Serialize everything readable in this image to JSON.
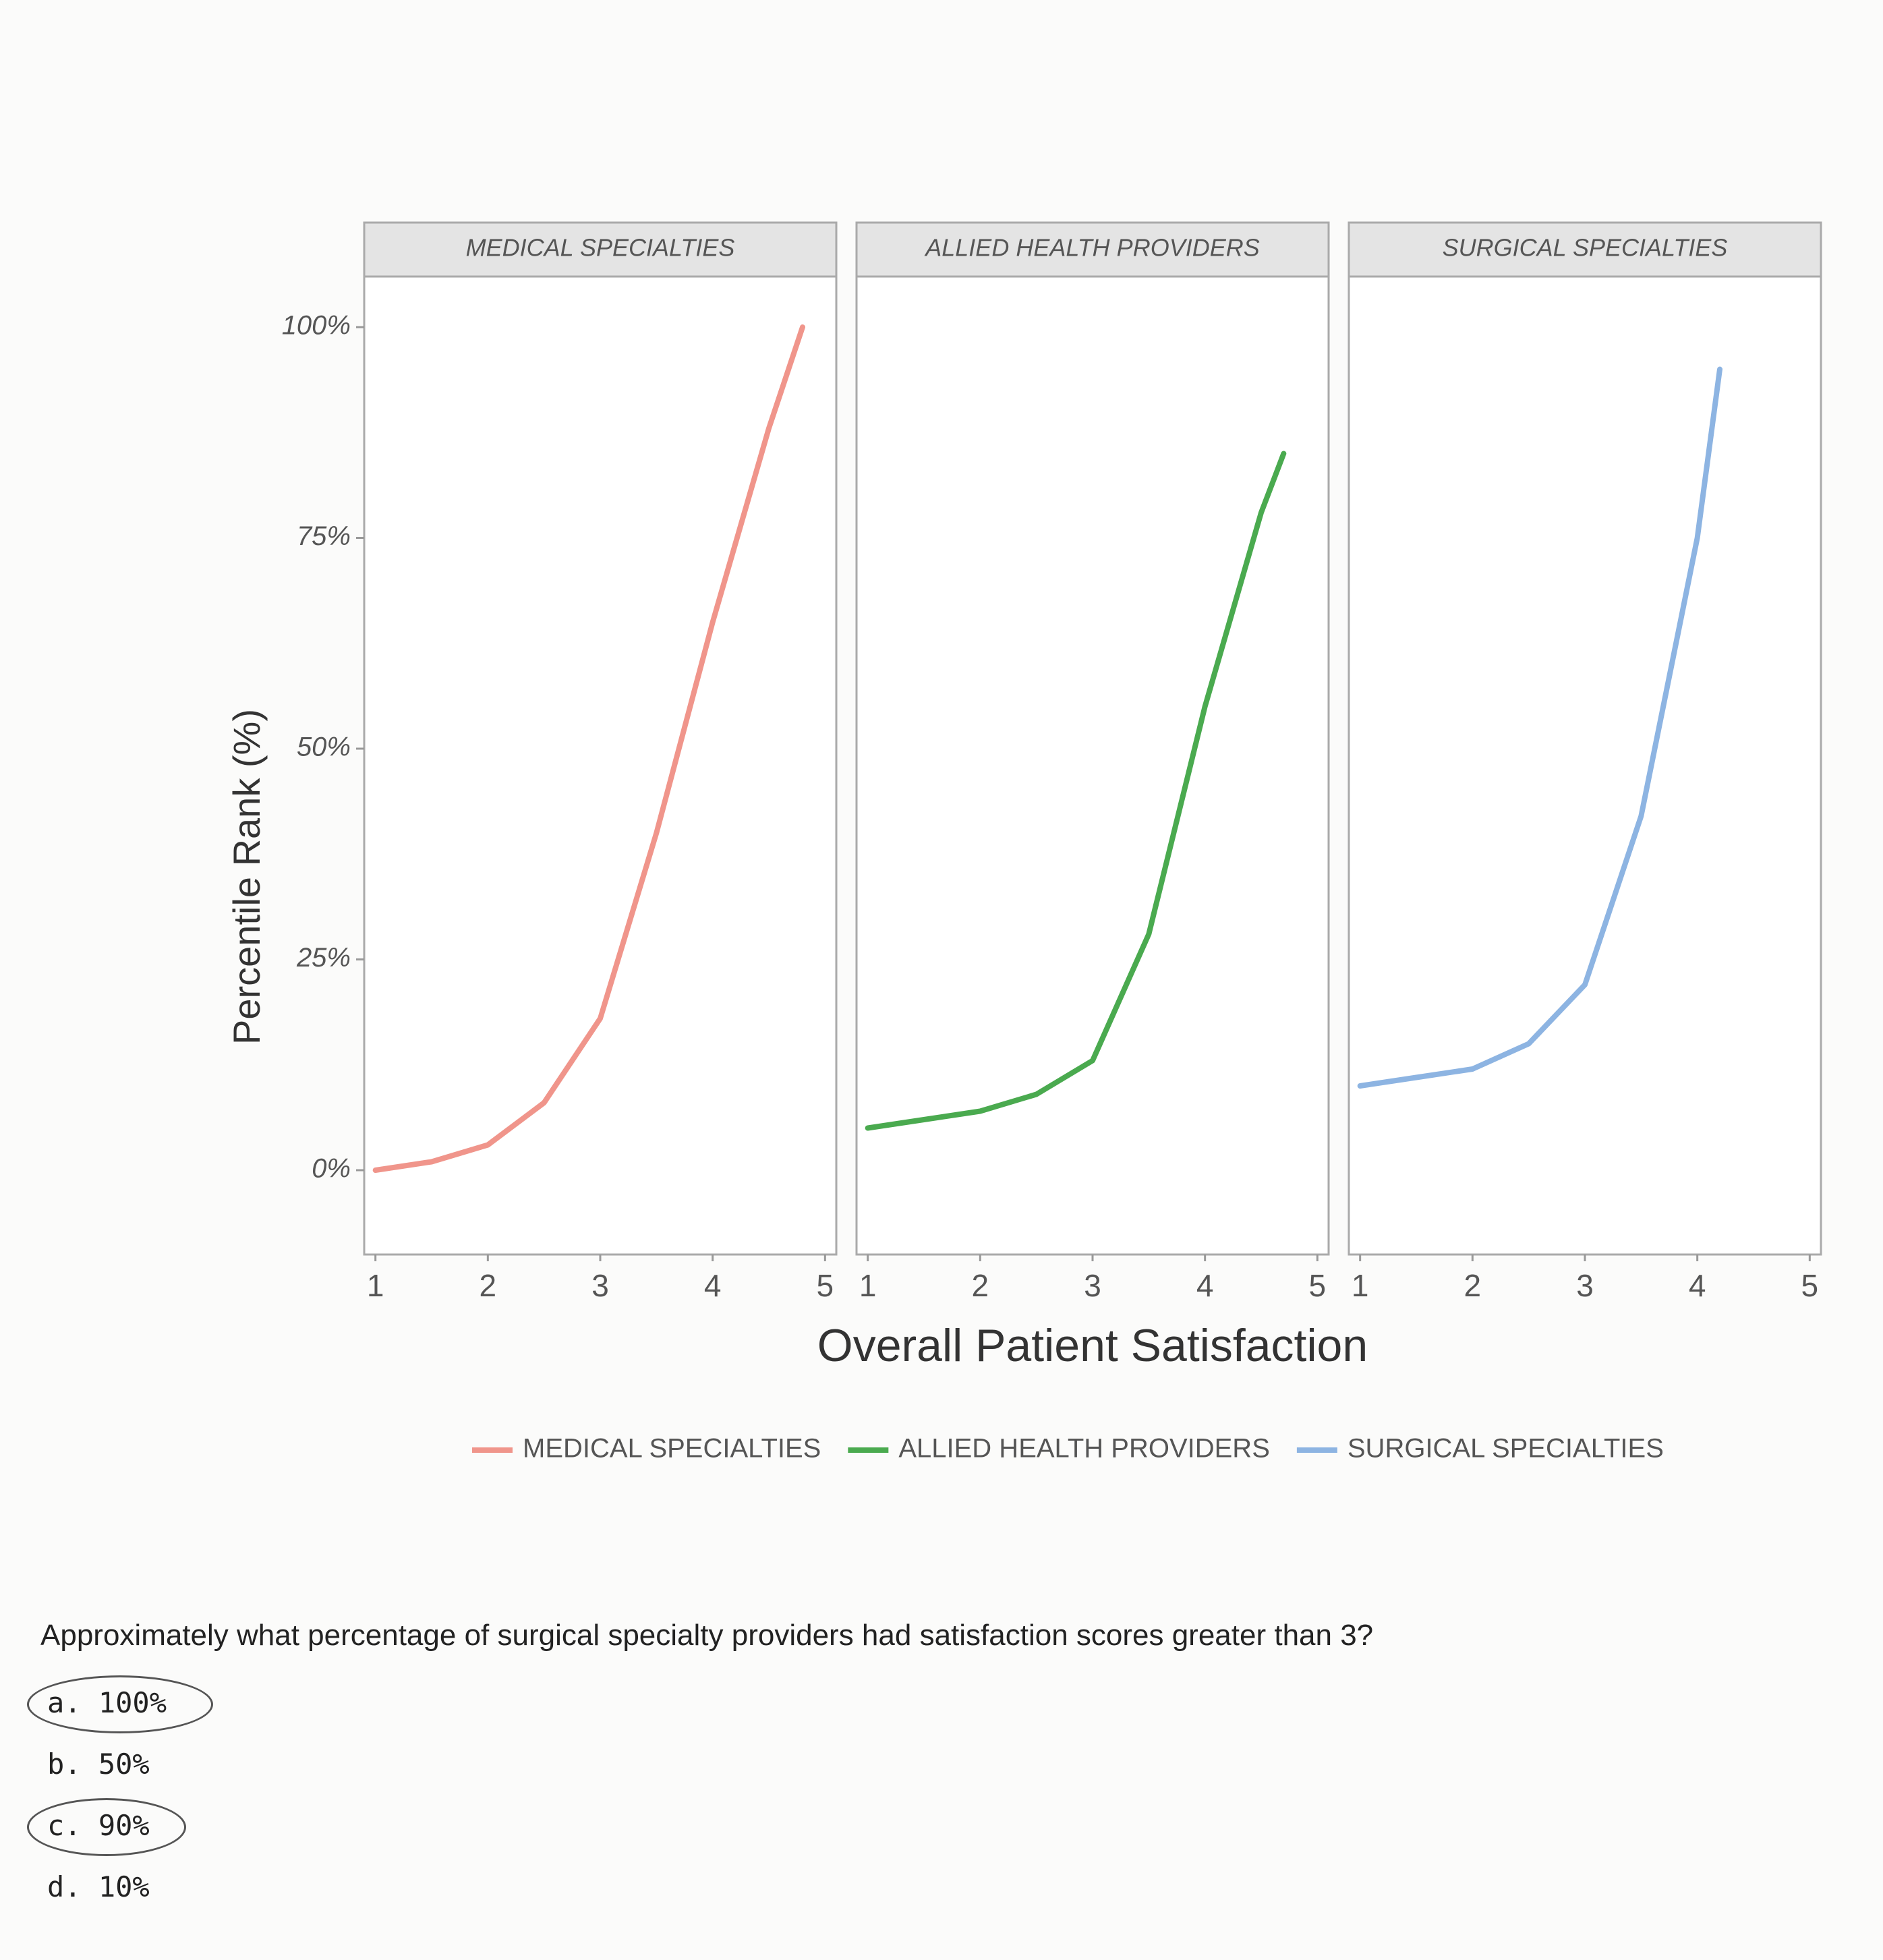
{
  "figure": {
    "y_label": "Percentile Rank (%)",
    "x_label": "Overall Patient Satisfaction"
  },
  "chart_data": [
    {
      "type": "line",
      "title": "MEDICAL SPECIALTIES",
      "x": [
        1,
        1.5,
        2,
        2.5,
        3,
        3.5,
        4,
        4.5,
        4.8
      ],
      "series": [
        {
          "name": "MEDICAL SPECIALTIES",
          "color": "#f0958b",
          "values": [
            0,
            1,
            3,
            8,
            18,
            40,
            65,
            88,
            100
          ]
        }
      ],
      "xlim": [
        0.9,
        5.1
      ],
      "xticks": [
        1,
        2,
        3,
        4,
        5
      ],
      "ylim": [
        -10,
        106
      ],
      "yticks": [
        {
          "value": 0,
          "label": "0%"
        },
        {
          "value": 25,
          "label": "25%"
        },
        {
          "value": 50,
          "label": "50%"
        },
        {
          "value": 75,
          "label": "75%"
        },
        {
          "value": 100,
          "label": "100%"
        }
      ]
    },
    {
      "type": "line",
      "title": "ALLIED HEALTH PROVIDERS",
      "x": [
        1,
        1.5,
        2,
        2.5,
        3,
        3.5,
        4,
        4.5,
        4.7
      ],
      "series": [
        {
          "name": "ALLIED HEALTH PROVIDERS",
          "color": "#4aaa4f",
          "values": [
            5,
            6,
            7,
            9,
            13,
            28,
            55,
            78,
            85
          ]
        }
      ],
      "xlim": [
        0.9,
        5.1
      ],
      "xticks": [
        1,
        2,
        3,
        4,
        5
      ],
      "ylim": [
        -10,
        106
      ]
    },
    {
      "type": "line",
      "title": "SURGICAL SPECIALTIES",
      "x": [
        1,
        1.5,
        2,
        2.5,
        3,
        3.5,
        4,
        4.2
      ],
      "series": [
        {
          "name": "SURGICAL SPECIALTIES",
          "color": "#8db4e2",
          "values": [
            10,
            11,
            12,
            15,
            22,
            42,
            75,
            95
          ]
        }
      ],
      "xlim": [
        0.9,
        5.1
      ],
      "xticks": [
        1,
        2,
        3,
        4,
        5
      ],
      "ylim": [
        -10,
        106
      ]
    }
  ],
  "question": {
    "text": "Approximately what percentage of surgical specialty providers had satisfaction scores greater than 3?",
    "options": [
      "a. 100%",
      "b. 50%",
      "c. 90%",
      "d. 10%"
    ]
  }
}
